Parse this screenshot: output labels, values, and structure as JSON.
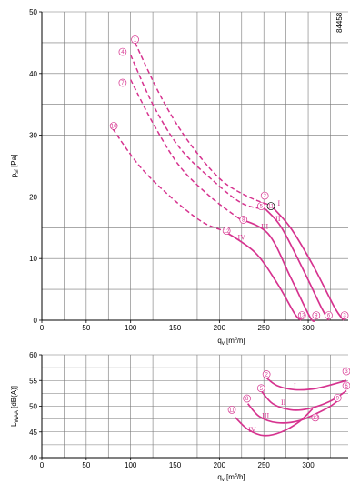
{
  "figure_id": "84458",
  "colors": {
    "curve": "#d6338f",
    "grid": "#777777",
    "axis": "#000000"
  },
  "chart_data": [
    {
      "type": "line",
      "xlabel": "q_v [m³/h]",
      "ylabel": "p_sf [Pa]",
      "xlim": [
        0,
        345
      ],
      "ylim": [
        0,
        50
      ],
      "xticks": [
        0,
        50,
        100,
        150,
        200,
        250,
        300
      ],
      "xtick_labels": [
        "0",
        "50",
        "100",
        "150",
        "200",
        "250",
        "300"
      ],
      "yticks": [
        0,
        10,
        20,
        30,
        40,
        50
      ],
      "ytick_labels": [
        "0",
        "10",
        "20",
        "30",
        "40",
        "50"
      ],
      "grid": true,
      "series": [
        {
          "label": "I",
          "dashed": [
            [
              105,
              45
            ],
            [
              135,
              36
            ],
            [
              165,
              29
            ],
            [
              200,
              23
            ],
            [
              230,
              20.2
            ],
            [
              258,
              18.6
            ]
          ],
          "solid": [
            [
              258,
              18.6
            ],
            [
              280,
              15
            ],
            [
              305,
              9
            ],
            [
              330,
              2
            ],
            [
              340,
              0
            ]
          ]
        },
        {
          "label": "II",
          "dashed": [
            [
              100,
              43
            ],
            [
              125,
              35
            ],
            [
              155,
              28
            ],
            [
              190,
              23
            ],
            [
              225,
              19
            ],
            [
              252,
              18
            ]
          ],
          "solid": [
            [
              252,
              18
            ],
            [
              270,
              15
            ],
            [
              295,
              8
            ],
            [
              315,
              2
            ],
            [
              323,
              0
            ]
          ]
        },
        {
          "label": "III",
          "dashed": [
            [
              100,
              39
            ],
            [
              125,
              32
            ],
            [
              155,
              25
            ],
            [
              190,
              20
            ],
            [
              222,
              16.5
            ]
          ],
          "solid": [
            [
              222,
              16.5
            ],
            [
              255,
              14
            ],
            [
              280,
              7
            ],
            [
              302,
              0.5
            ],
            [
              308,
              0
            ]
          ]
        },
        {
          "label": "IV",
          "dashed": [
            [
              80,
              31
            ],
            [
              110,
              25
            ],
            [
              145,
              20
            ],
            [
              180,
              16
            ],
            [
              205,
              14.5
            ]
          ],
          "solid": [
            [
              205,
              14.5
            ],
            [
              240,
              11
            ],
            [
              265,
              6
            ],
            [
              285,
              1
            ],
            [
              292,
              0
            ]
          ]
        }
      ],
      "markers": [
        {
          "n": "1",
          "x": 105,
          "y": 45.5
        },
        {
          "n": "4",
          "x": 91,
          "y": 43.5
        },
        {
          "n": "7",
          "x": 91,
          "y": 38.5
        },
        {
          "n": "10",
          "x": 81,
          "y": 31.5
        },
        {
          "n": "2",
          "x": 251,
          "y": 20.2
        },
        {
          "n": "5",
          "x": 247,
          "y": 18.5
        },
        {
          "n": "11",
          "x": 258,
          "y": 18.5
        },
        {
          "n": "8",
          "x": 227,
          "y": 16.3
        },
        {
          "n": "12",
          "x": 208,
          "y": 14.5
        },
        {
          "n": "3",
          "x": 341,
          "y": 0.8
        },
        {
          "n": "6",
          "x": 323,
          "y": 0.8
        },
        {
          "n": "9",
          "x": 309,
          "y": 0.8
        },
        {
          "n": "13",
          "x": 293,
          "y": 0.8
        }
      ],
      "curve_labels": [
        {
          "text": "I",
          "x": 267,
          "y": 19
        },
        {
          "text": "II",
          "x": 266,
          "y": 16.5
        },
        {
          "text": "III",
          "x": 251,
          "y": 15.3
        },
        {
          "text": "IV",
          "x": 225,
          "y": 13.5
        }
      ]
    },
    {
      "type": "line",
      "xlabel": "q_v [m³/h]",
      "ylabel": "L_WAA [dB(A)]",
      "xlim": [
        0,
        345
      ],
      "ylim": [
        40,
        60
      ],
      "xticks": [
        0,
        50,
        100,
        150,
        200,
        250,
        300
      ],
      "xtick_labels": [
        "0",
        "50",
        "100",
        "150",
        "200",
        "250",
        "300"
      ],
      "yticks": [
        40,
        45,
        50,
        55,
        60
      ],
      "ytick_labels": [
        "40",
        "45",
        "50",
        "55",
        "60"
      ],
      "grid": true,
      "series": [
        {
          "label": "I",
          "points": [
            [
              253,
              55.5
            ],
            [
              265,
              54
            ],
            [
              285,
              53.2
            ],
            [
              310,
              53.5
            ],
            [
              343,
              55
            ]
          ]
        },
        {
          "label": "II",
          "points": [
            [
              247,
              53
            ],
            [
              260,
              50.5
            ],
            [
              280,
              49.3
            ],
            [
              300,
              49.5
            ],
            [
              325,
              51
            ],
            [
              343,
              53
            ]
          ]
        },
        {
          "label": "III",
          "points": [
            [
              232,
              50.5
            ],
            [
              245,
              48
            ],
            [
              265,
              46.8
            ],
            [
              290,
              47.2
            ],
            [
              320,
              49.5
            ],
            [
              333,
              51
            ]
          ]
        },
        {
          "label": "IV",
          "points": [
            [
              218,
              47.8
            ],
            [
              232,
              45.5
            ],
            [
              250,
              44.3
            ],
            [
              270,
              45
            ],
            [
              290,
              47
            ],
            [
              305,
              49.5
            ]
          ]
        }
      ],
      "markers": [
        {
          "n": "2",
          "x": 253,
          "y": 56.2
        },
        {
          "n": "3",
          "x": 343,
          "y": 56.8
        },
        {
          "n": "5",
          "x": 247,
          "y": 53.5
        },
        {
          "n": "6",
          "x": 343,
          "y": 54.0
        },
        {
          "n": "8",
          "x": 231,
          "y": 51.5
        },
        {
          "n": "9",
          "x": 333,
          "y": 51.6
        },
        {
          "n": "11",
          "x": 214,
          "y": 49.3
        },
        {
          "n": "12",
          "x": 308,
          "y": 47.8
        }
      ],
      "curve_labels": [
        {
          "text": "I",
          "x": 285,
          "y": 54
        },
        {
          "text": "II",
          "x": 272,
          "y": 50.8
        },
        {
          "text": "III",
          "x": 252,
          "y": 48.2
        },
        {
          "text": "IV",
          "x": 237,
          "y": 45.5
        }
      ]
    }
  ]
}
